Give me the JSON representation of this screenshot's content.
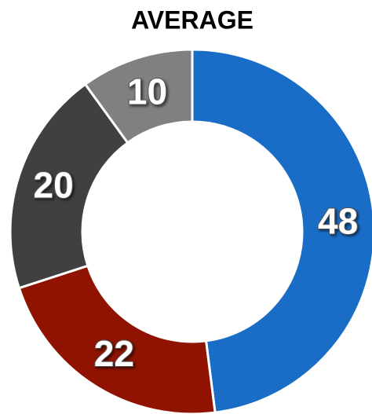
{
  "chart_data": {
    "type": "donut",
    "title": "AVERAGE",
    "categories": [
      null,
      null,
      null,
      null
    ],
    "values": [
      48,
      22,
      20,
      10
    ],
    "colors": [
      "#1a6dc6",
      "#8f1300",
      "#404040",
      "#808080"
    ]
  }
}
